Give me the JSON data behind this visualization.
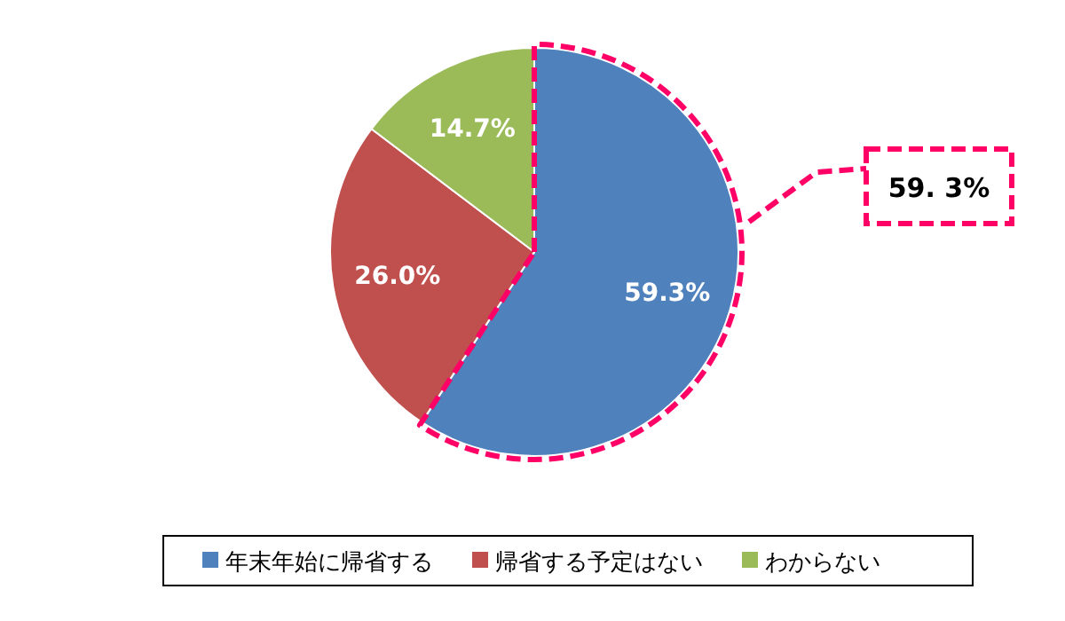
{
  "chart_data": {
    "type": "pie",
    "categories": [
      "年末年始に帰省する",
      "帰省する予定はない",
      "わからない"
    ],
    "values": [
      59.3,
      26.0,
      14.7
    ],
    "colors": [
      "#4f81bd",
      "#c0504d",
      "#9bbb59"
    ],
    "value_labels": [
      "59.3%",
      "26.0%",
      "14.7%"
    ],
    "annotations": [
      "59. 3%"
    ],
    "legend": "bottom"
  }
}
